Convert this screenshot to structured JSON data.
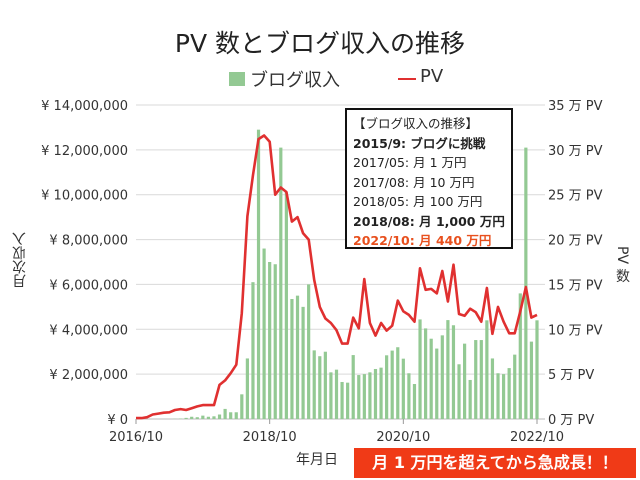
{
  "chart_data": {
    "type": "bar+line",
    "title": "PV 数とブログ収入の推移",
    "xlabel": "年月日",
    "ylabel_left": "月次収入",
    "ylabel_right": "PV 数",
    "x_start": "2016/10",
    "x_end": "2022/10",
    "x_ticks": [
      "2016/10",
      "2018/10",
      "2020/10",
      "2022/10"
    ],
    "y_left_ticks": [
      "¥ 0",
      "¥ 2,000,000",
      "¥ 4,000,000",
      "¥ 6,000,000",
      "¥ 8,000,000",
      "¥ 10,000,000",
      "¥ 12,000,000",
      "¥ 14,000,000"
    ],
    "y_right_ticks": [
      "0 万 PV",
      "5 万 PV",
      "10 万 PV",
      "15 万 PV",
      "20 万 PV",
      "25 万 PV",
      "30 万 PV",
      "35 万 PV"
    ],
    "ylim_left": [
      0,
      14000000
    ],
    "ylim_right": [
      0,
      350000
    ],
    "grid": true,
    "legend_position": "top",
    "series": [
      {
        "name": "ブログ収入",
        "type": "bar",
        "color": "#93c993",
        "unit": "yen (millions)",
        "values": [
          0,
          0,
          0,
          0,
          0,
          0,
          0,
          0.01,
          0.02,
          0.05,
          0.1,
          0.08,
          0.15,
          0.1,
          0.12,
          0.2,
          0.45,
          0.3,
          0.3,
          1.1,
          2.7,
          6.1,
          12.9,
          7.6,
          7.0,
          6.9,
          12.1,
          10.1,
          5.35,
          5.5,
          5.0,
          6.0,
          3.06,
          2.8,
          3.0,
          2.08,
          2.2,
          1.65,
          1.62,
          2.85,
          1.96,
          2.0,
          2.08,
          2.23,
          2.29,
          2.84,
          3.05,
          3.2,
          2.69,
          2.04,
          1.56,
          4.44,
          4.04,
          3.58,
          3.14,
          3.73,
          4.41,
          4.18,
          2.44,
          3.36,
          1.74,
          3.52,
          3.52,
          4.4,
          2.7,
          2.04,
          2.0,
          2.27,
          2.87,
          5.6,
          12.1,
          3.45,
          4.4
        ]
      },
      {
        "name": "PV",
        "type": "line",
        "color": "#e03030",
        "unit": "万 PV",
        "values": [
          0.1,
          0.1,
          0.2,
          0.5,
          0.6,
          0.7,
          0.75,
          1.0,
          1.1,
          1.0,
          1.2,
          1.4,
          1.55,
          1.55,
          1.55,
          3.8,
          4.3,
          5.1,
          6.05,
          11.8,
          22.6,
          27.2,
          31.2,
          31.6,
          30.9,
          25.0,
          25.8,
          25.3,
          22.0,
          22.5,
          20.7,
          20.0,
          15.5,
          12.5,
          11.2,
          10.7,
          9.9,
          8.4,
          8.4,
          11.3,
          10.1,
          15.6,
          10.7,
          9.3,
          10.7,
          9.85,
          10.4,
          13.2,
          12.0,
          11.6,
          10.85,
          16.8,
          14.4,
          14.5,
          14.0,
          16.5,
          13.1,
          17.2,
          11.7,
          11.5,
          12.3,
          11.9,
          10.85,
          14.6,
          9.5,
          12.5,
          10.85,
          9.55,
          9.55,
          12.0,
          14.7,
          11.3,
          11.6
        ]
      }
    ]
  },
  "annotation": {
    "title": "【ブログ収入の推移】",
    "lines": [
      {
        "text": "2015/9: ブログに挑戦",
        "bold": true,
        "color": "#222222"
      },
      {
        "text": "2017/05: 月 1 万円",
        "bold": false,
        "color": "#222222"
      },
      {
        "text": "2017/08: 月 10 万円",
        "bold": false,
        "color": "#222222"
      },
      {
        "text": "2018/05: 月 100 万円",
        "bold": false,
        "color": "#222222"
      },
      {
        "text": "2018/08: 月 1,000 万円",
        "bold": true,
        "color": "#222222"
      },
      {
        "text": "2022/10: 月 440 万円",
        "bold": true,
        "color": "#e8501e"
      }
    ]
  },
  "banner": {
    "text": "月 1 万円を超えてから急成長！！",
    "color": "#f03a17"
  }
}
